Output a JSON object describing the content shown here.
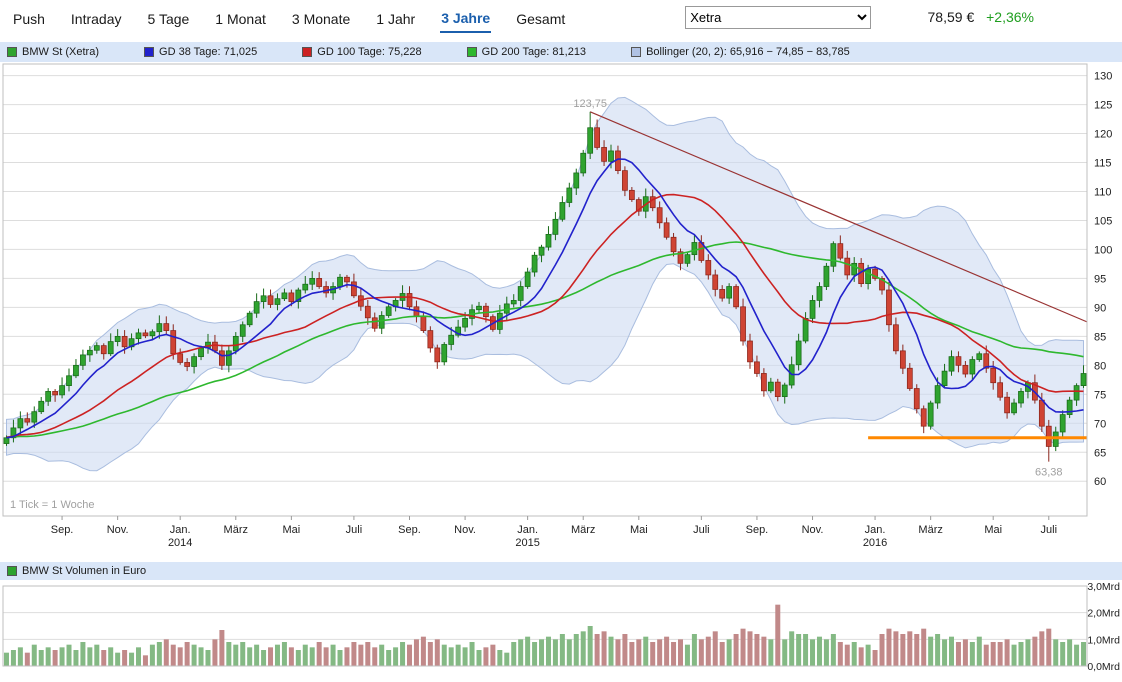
{
  "toolbar": {
    "tabs": [
      {
        "label": "Push",
        "active": false
      },
      {
        "label": "Intraday",
        "active": false
      },
      {
        "label": "5 Tage",
        "active": false
      },
      {
        "label": "1 Monat",
        "active": false
      },
      {
        "label": "3 Monate",
        "active": false
      },
      {
        "label": "1 Jahr",
        "active": false
      },
      {
        "label": "3 Jahre",
        "active": true
      },
      {
        "label": "Gesamt",
        "active": false
      }
    ],
    "exchange_select": {
      "value": "Xetra",
      "options": [
        "Xetra"
      ]
    },
    "price": "78,59 €",
    "change": "+2,36%",
    "change_color": "#1f9e1f",
    "active_tab_color": "#1b5fad"
  },
  "legend": {
    "items": [
      {
        "label": "BMW St (Xetra)",
        "color": "#2fa32f"
      },
      {
        "label": "GD 38 Tage: 71,025",
        "color": "#2222cc"
      },
      {
        "label": "GD 100 Tage: 75,228",
        "color": "#cc2222"
      },
      {
        "label": "GD 200 Tage: 81,213",
        "color": "#2eb82e"
      },
      {
        "label": "Bollinger (20, 2): 65,916 − 74,85 − 83,785",
        "color": "#b0c2e4"
      }
    ]
  },
  "volume_legend": {
    "label": "BMW St Volumen in Euro",
    "color": "#2fa32f"
  },
  "tick_note": "1 Tick = 1 Woche",
  "chart_data": {
    "type": "candlestick",
    "title": "BMW St (Xetra)",
    "period": "3 Jahre",
    "tick_interval": "1 Woche",
    "y_axis": {
      "min": 54,
      "max": 132,
      "ticks": [
        60,
        65,
        70,
        75,
        80,
        85,
        90,
        95,
        100,
        105,
        110,
        115,
        120,
        125,
        130
      ]
    },
    "x_ticks": [
      {
        "week": 8,
        "label": "Sep."
      },
      {
        "week": 16,
        "label": "Nov."
      },
      {
        "week": 25,
        "label": "Jan.",
        "year": "2014"
      },
      {
        "week": 33,
        "label": "März"
      },
      {
        "week": 41,
        "label": "Mai"
      },
      {
        "week": 50,
        "label": "Juli"
      },
      {
        "week": 58,
        "label": "Sep."
      },
      {
        "week": 66,
        "label": "Nov."
      },
      {
        "week": 75,
        "label": "Jan.",
        "year": "2015"
      },
      {
        "week": 83,
        "label": "März"
      },
      {
        "week": 91,
        "label": "Mai"
      },
      {
        "week": 100,
        "label": "Juli"
      },
      {
        "week": 108,
        "label": "Sep."
      },
      {
        "week": 116,
        "label": "Nov."
      },
      {
        "week": 125,
        "label": "Jan.",
        "year": "2016"
      },
      {
        "week": 133,
        "label": "März"
      },
      {
        "week": 142,
        "label": "Mai"
      },
      {
        "week": 150,
        "label": "Juli"
      }
    ],
    "first_open": 66.5,
    "weekly_closes": [
      67.5,
      69.2,
      70.8,
      70.2,
      72.0,
      73.8,
      75.5,
      74.9,
      76.5,
      78.2,
      80.0,
      81.8,
      82.6,
      83.4,
      82.0,
      84.1,
      85.0,
      83.2,
      84.6,
      85.6,
      85.1,
      85.8,
      87.2,
      86.0,
      82.0,
      80.5,
      79.8,
      81.5,
      83.0,
      84.0,
      82.5,
      80.0,
      82.5,
      85.0,
      87.0,
      89.0,
      91.0,
      92.0,
      90.5,
      91.5,
      92.5,
      91.0,
      93.0,
      94.0,
      95.0,
      93.6,
      92.5,
      93.6,
      95.2,
      94.4,
      92.0,
      90.2,
      88.2,
      86.4,
      88.6,
      90.1,
      91.2,
      92.4,
      90.1,
      88.4,
      86.0,
      83.0,
      80.6,
      83.6,
      85.2,
      86.6,
      88.1,
      89.6,
      90.2,
      88.4,
      86.2,
      89.0,
      90.6,
      91.2,
      93.6,
      96.1,
      99.0,
      100.4,
      102.6,
      105.2,
      108.1,
      110.6,
      113.2,
      116.6,
      121.0,
      117.6,
      115.2,
      117.0,
      113.6,
      110.2,
      108.6,
      106.6,
      109.1,
      107.2,
      104.6,
      102.1,
      99.6,
      97.6,
      99.1,
      101.2,
      98.1,
      95.6,
      93.1,
      91.6,
      93.6,
      90.1,
      84.2,
      80.6,
      78.6,
      75.6,
      77.1,
      74.6,
      76.6,
      80.1,
      84.2,
      88.1,
      91.2,
      93.6,
      97.1,
      101.0,
      98.5,
      95.6,
      97.6,
      94.1,
      96.6,
      95.0,
      93.0,
      87.0,
      82.5,
      79.5,
      76.0,
      72.5,
      69.5,
      73.5,
      76.5,
      79.0,
      81.5,
      80.0,
      78.5,
      81.0,
      82.0,
      79.5,
      77.0,
      74.5,
      71.8,
      73.5,
      75.5,
      77.0,
      74.0,
      69.5,
      66.0,
      68.5,
      71.5,
      74.0,
      76.5,
      78.59
    ],
    "peak": {
      "week": 84,
      "price": 123.75,
      "label": "123,75"
    },
    "trough": {
      "week": 150,
      "price": 63.38,
      "label": "63,38"
    },
    "indicators": {
      "gd38": {
        "name": "GD 38 Tage",
        "window_weeks": 8,
        "color": "#2222cc",
        "current": "71,025"
      },
      "gd100": {
        "name": "GD 100 Tage",
        "window_weeks": 20,
        "color": "#cc2222",
        "current": "75,228"
      },
      "gd200": {
        "name": "GD 200 Tage",
        "window_weeks": 40,
        "color": "#2eb82e",
        "current": "81,213"
      },
      "bollinger": {
        "name": "Bollinger (20, 2)",
        "window_weeks": 20,
        "stddev": 2,
        "current": "65,916 − 74,85 − 83,785",
        "band_fill": "#cddbf1",
        "band_stroke": "#a9bddf"
      }
    },
    "trendline": {
      "from_week": 84,
      "from_price": 123.75,
      "to_price": 87.5,
      "color": "#993333"
    },
    "support_line": {
      "from_week": 124,
      "price": 67.5,
      "color": "#ff8800"
    },
    "style": {
      "up_fill": "#2fa32f",
      "up_stroke": "#186a18",
      "down_fill": "#cf4434",
      "down_stroke": "#8a251b",
      "grid": "#dddddd",
      "frame": "#bfbfbf",
      "axis_text": "#222222",
      "muted_text": "#a0a0a0",
      "volume_up": "#84b984",
      "volume_down": "#c18989"
    },
    "volume": {
      "type": "bar",
      "unit": "Mrd Euro",
      "max": 3.0,
      "y_ticks": [
        "0,0Mrd",
        "1,0Mrd",
        "2,0Mrd",
        "3,0Mrd"
      ],
      "values": [
        0.5,
        0.6,
        0.7,
        0.5,
        0.8,
        0.6,
        0.7,
        0.6,
        0.7,
        0.8,
        0.6,
        0.9,
        0.7,
        0.8,
        0.6,
        0.7,
        0.5,
        0.6,
        0.5,
        0.7,
        0.4,
        0.8,
        0.9,
        1.0,
        0.8,
        0.7,
        0.9,
        0.8,
        0.7,
        0.6,
        1.0,
        1.35,
        0.9,
        0.8,
        0.9,
        0.7,
        0.8,
        0.6,
        0.7,
        0.8,
        0.9,
        0.7,
        0.6,
        0.8,
        0.7,
        0.9,
        0.7,
        0.8,
        0.6,
        0.7,
        0.9,
        0.8,
        0.9,
        0.7,
        0.8,
        0.6,
        0.7,
        0.9,
        0.8,
        1.0,
        1.1,
        0.9,
        1.0,
        0.8,
        0.7,
        0.8,
        0.7,
        0.9,
        0.6,
        0.7,
        0.8,
        0.6,
        0.5,
        0.9,
        1.0,
        1.1,
        0.9,
        1.0,
        1.1,
        1.0,
        1.2,
        1.0,
        1.2,
        1.3,
        1.5,
        1.2,
        1.3,
        1.1,
        1.0,
        1.2,
        0.9,
        1.0,
        1.1,
        0.9,
        1.0,
        1.1,
        0.9,
        1.0,
        0.8,
        1.2,
        1.0,
        1.1,
        1.3,
        0.9,
        1.0,
        1.2,
        1.4,
        1.3,
        1.2,
        1.1,
        1.0,
        2.3,
        1.0,
        1.3,
        1.2,
        1.2,
        1.0,
        1.1,
        1.0,
        1.2,
        0.9,
        0.8,
        0.9,
        0.7,
        0.8,
        0.6,
        1.2,
        1.4,
        1.3,
        1.2,
        1.3,
        1.2,
        1.4,
        1.1,
        1.2,
        1.0,
        1.1,
        0.9,
        1.0,
        0.9,
        1.1,
        0.8,
        0.9,
        0.9,
        1.0,
        0.8,
        0.9,
        1.0,
        1.1,
        1.3,
        1.4,
        1.0,
        0.9,
        1.0,
        0.8,
        0.9
      ]
    }
  }
}
